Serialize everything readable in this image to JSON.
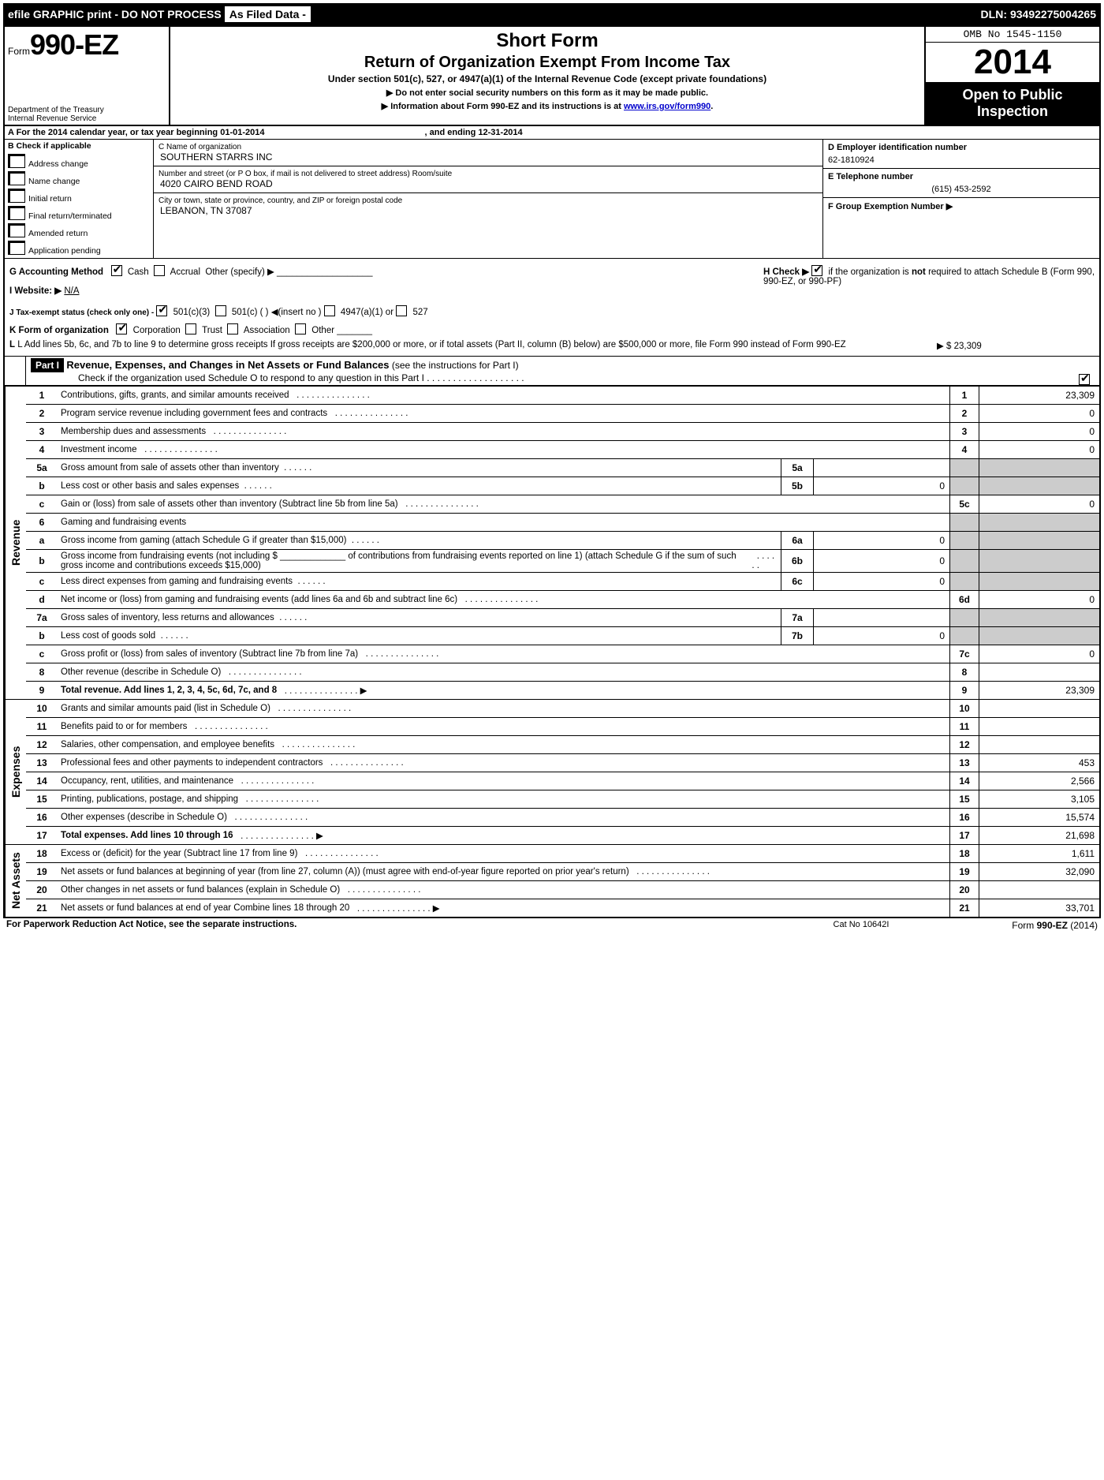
{
  "topbar": {
    "efile": "efile GRAPHIC print - DO NOT PROCESS",
    "asfiled": "As Filed Data -",
    "dln_label": "DLN:",
    "dln": "93492275004265"
  },
  "header": {
    "form_prefix": "Form",
    "form_number": "990-EZ",
    "dept1": "Department of the Treasury",
    "dept2": "Internal Revenue Service",
    "title1": "Short Form",
    "title2": "Return of Organization Exempt From Income Tax",
    "subtitle": "Under section 501(c), 527, or 4947(a)(1) of the Internal Revenue Code (except private foundations)",
    "warn1": "▶ Do not enter social security numbers on this form as it may be made public.",
    "warn2_pre": "▶ Information about Form 990-EZ and its instructions is at ",
    "warn2_link": "www.irs.gov/form990",
    "omb": "OMB No 1545-1150",
    "year": "2014",
    "open1": "Open to Public",
    "open2": "Inspection"
  },
  "sectionA": {
    "text_pre": "A  For the 2014 calendar year, or tax year beginning ",
    "begin": "01-01-2014",
    "text_mid": " , and ending ",
    "end": "12-31-2014"
  },
  "sectionB": {
    "label": "B  Check if applicable",
    "opts": [
      "Address change",
      "Name change",
      "Initial return",
      "Final return/terminated",
      "Amended return",
      "Application pending"
    ]
  },
  "sectionC": {
    "name_lbl": "C Name of organization",
    "name": "SOUTHERN STARRS INC",
    "street_lbl": "Number and street (or P  O  box, if mail is not delivered to street address) Room/suite",
    "street": "4020 CAIRO BEND ROAD",
    "city_lbl": "City or town, state or province, country, and ZIP or foreign postal code",
    "city": "LEBANON, TN  37087"
  },
  "sectionD": {
    "ein_lbl": "D Employer identification number",
    "ein": "62-1810924",
    "tel_lbl": "E Telephone number",
    "tel": "(615) 453-2592",
    "grp_lbl": "F Group Exemption Number  ▶"
  },
  "midblock": {
    "G": "G Accounting Method",
    "G_cash": "Cash",
    "G_accrual": "Accrual",
    "G_other": "Other (specify) ▶",
    "I": "I Website: ▶",
    "I_val": "N/A",
    "J": "J Tax-exempt status (check only one) -",
    "J_501c3": "501(c)(3)",
    "J_501c": "501(c) (   ) ◀(insert no )",
    "J_4947": "4947(a)(1) or",
    "J_527": "527",
    "K": "K Form of organization",
    "K_corp": "Corporation",
    "K_trust": "Trust",
    "K_assoc": "Association",
    "K_other": "Other",
    "L": "L Add lines 5b, 6c, and 7b to line 9 to determine gross receipts  If gross receipts are $200,000 or more, or if total assets (Part II, column (B) below) are $500,000 or more, file Form 990 instead of Form 990-EZ",
    "L_val": "▶ $ 23,309",
    "H_text": "H  Check ▶",
    "H_text2": "if the organization is",
    "H_not": "not",
    "H_text3": "required to attach Schedule B (Form 990, 990-EZ, or 990-PF)"
  },
  "part1": {
    "label": "Part I",
    "title": "Revenue, Expenses, and Changes in Net Assets or Fund Balances",
    "title_sub": "(see the instructions for Part I)",
    "check_line": "Check if the organization used Schedule O to respond to any question in this Part I  .  .  .  .  .  .  .  .  .  .  .  .  .  .  .  .  .  .  ."
  },
  "revenue_label": "Revenue",
  "expenses_label": "Expenses",
  "netassets_label": "Net Assets",
  "lines": {
    "l1": {
      "n": "1",
      "d": "Contributions, gifts, grants, and similar amounts received",
      "box": "1",
      "v": "23,309"
    },
    "l2": {
      "n": "2",
      "d": "Program service revenue including government fees and contracts",
      "box": "2",
      "v": "0"
    },
    "l3": {
      "n": "3",
      "d": "Membership dues and assessments",
      "box": "3",
      "v": "0"
    },
    "l4": {
      "n": "4",
      "d": "Investment income",
      "box": "4",
      "v": "0"
    },
    "l5a": {
      "n": "5a",
      "d": "Gross amount from sale of assets other than inventory",
      "ib": "5a",
      "iv": ""
    },
    "l5b": {
      "n": "b",
      "d": "Less  cost or other basis and sales expenses",
      "ib": "5b",
      "iv": "0"
    },
    "l5c": {
      "n": "c",
      "d": "Gain or (loss) from sale of assets other than inventory (Subtract line 5b from line 5a)",
      "box": "5c",
      "v": "0"
    },
    "l6": {
      "n": "6",
      "d": "Gaming and fundraising events"
    },
    "l6a": {
      "n": "a",
      "d": "Gross income from gaming (attach Schedule G if greater than $15,000)",
      "ib": "6a",
      "iv": "0"
    },
    "l6b": {
      "n": "b",
      "d": "Gross income from fundraising events (not including $ _____________ of contributions from fundraising events reported on line 1) (attach Schedule G if the sum of such gross income and contributions exceeds $15,000)",
      "ib": "6b",
      "iv": "0"
    },
    "l6c": {
      "n": "c",
      "d": "Less  direct expenses from gaming and fundraising events",
      "ib": "6c",
      "iv": "0"
    },
    "l6d": {
      "n": "d",
      "d": "Net income or (loss) from gaming and fundraising events (add lines 6a and 6b and subtract line 6c)",
      "box": "6d",
      "v": "0"
    },
    "l7a": {
      "n": "7a",
      "d": "Gross sales of inventory, less returns and allowances",
      "ib": "7a",
      "iv": ""
    },
    "l7b": {
      "n": "b",
      "d": "Less  cost of goods sold",
      "ib": "7b",
      "iv": "0"
    },
    "l7c": {
      "n": "c",
      "d": "Gross profit or (loss) from sales of inventory (Subtract line 7b from line 7a)",
      "box": "7c",
      "v": "0"
    },
    "l8": {
      "n": "8",
      "d": "Other revenue (describe in Schedule O)",
      "box": "8",
      "v": ""
    },
    "l9": {
      "n": "9",
      "d": "Total revenue. Add lines 1, 2, 3, 4, 5c, 6d, 7c, and 8",
      "box": "9",
      "v": "23,309",
      "bold": true,
      "arrow": true
    },
    "l10": {
      "n": "10",
      "d": "Grants and similar amounts paid (list in Schedule O)",
      "box": "10",
      "v": ""
    },
    "l11": {
      "n": "11",
      "d": "Benefits paid to or for members",
      "box": "11",
      "v": ""
    },
    "l12": {
      "n": "12",
      "d": "Salaries, other compensation, and employee benefits",
      "box": "12",
      "v": ""
    },
    "l13": {
      "n": "13",
      "d": "Professional fees and other payments to independent contractors",
      "box": "13",
      "v": "453"
    },
    "l14": {
      "n": "14",
      "d": "Occupancy, rent, utilities, and maintenance",
      "box": "14",
      "v": "2,566"
    },
    "l15": {
      "n": "15",
      "d": "Printing, publications, postage, and shipping",
      "box": "15",
      "v": "3,105"
    },
    "l16": {
      "n": "16",
      "d": "Other expenses (describe in Schedule O)",
      "box": "16",
      "v": "15,574"
    },
    "l17": {
      "n": "17",
      "d": "Total expenses. Add lines 10 through 16",
      "box": "17",
      "v": "21,698",
      "bold": true,
      "arrow": true
    },
    "l18": {
      "n": "18",
      "d": "Excess or (deficit) for the year (Subtract line 17 from line 9)",
      "box": "18",
      "v": "1,611"
    },
    "l19": {
      "n": "19",
      "d": "Net assets or fund balances at beginning of year (from line 27, column (A)) (must agree with end-of-year figure reported on prior year's return)",
      "box": "19",
      "v": "32,090"
    },
    "l20": {
      "n": "20",
      "d": "Other changes in net assets or fund balances (explain in Schedule O)",
      "box": "20",
      "v": ""
    },
    "l21": {
      "n": "21",
      "d": "Net assets or fund balances at end of year  Combine lines 18 through 20",
      "box": "21",
      "v": "33,701",
      "arrow": true
    }
  },
  "footer": {
    "left": "For Paperwork Reduction Act Notice, see the separate instructions.",
    "mid": "Cat No  10642I",
    "right_pre": "Form ",
    "right_bold": "990-EZ",
    "right_post": " (2014)"
  },
  "dots": ".  .  .  .  .  .  .  .  .  .  .  .  .  .  .  .  .  .  .  ."
}
